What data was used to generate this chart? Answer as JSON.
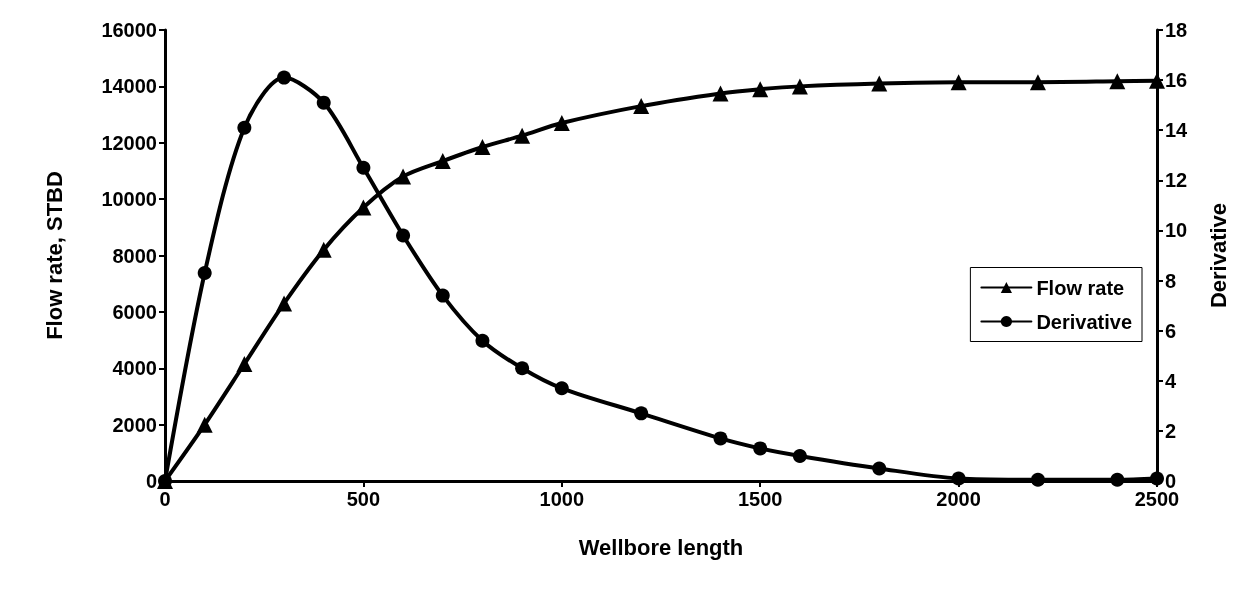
{
  "chart_data": {
    "type": "line",
    "xlabel": "Wellbore length",
    "ylabel": "Flow rate, STBD",
    "y2label": "Derivative",
    "x": [
      0,
      100,
      200,
      300,
      400,
      500,
      600,
      700,
      800,
      900,
      1000,
      1200,
      1400,
      1500,
      1600,
      1800,
      2000,
      2200,
      2400,
      2500
    ],
    "series": [
      {
        "name": "Flow rate",
        "color": "#000000",
        "marker": "triangle",
        "values": [
          0,
          2000,
          4150,
          6300,
          8200,
          9700,
          10800,
          11350,
          11850,
          12250,
          12700,
          13300,
          13750,
          13900,
          14000,
          14100,
          14150,
          14150,
          14180,
          14200
        ]
      },
      {
        "name": "Derivative",
        "color": "#000000",
        "marker": "circle",
        "axis": "y2",
        "values": [
          0,
          8.3,
          14.1,
          16.1,
          15.1,
          12.5,
          9.8,
          7.4,
          5.6,
          4.5,
          3.7,
          2.7,
          1.7,
          1.3,
          1.0,
          0.5,
          0.1,
          0.05,
          0.05,
          0.1
        ]
      }
    ],
    "xlim": [
      0,
      2500
    ],
    "xticks": [
      0,
      500,
      1000,
      1500,
      2000,
      2500
    ],
    "ylim": [
      0,
      16000
    ],
    "yticks": [
      0,
      2000,
      4000,
      6000,
      8000,
      10000,
      12000,
      14000,
      16000
    ],
    "y2lim": [
      0,
      18
    ],
    "y2ticks": [
      0,
      2,
      4,
      6,
      8,
      10,
      12,
      14,
      16,
      18
    ],
    "grid": false,
    "legend": "right",
    "line_style": "solid"
  }
}
